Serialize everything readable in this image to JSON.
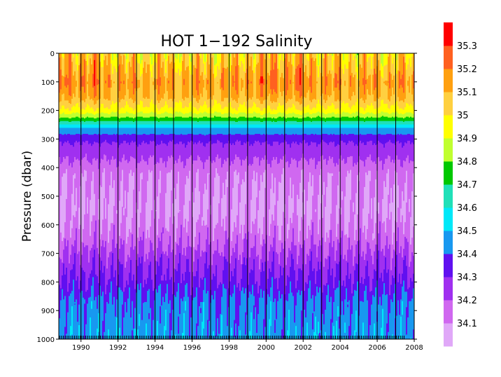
{
  "chart_data": {
    "type": "heatmap",
    "title": "HOT 1−192 Salinity",
    "ylabel": "Pressure (dbar)",
    "xlabel": "",
    "xlim": [
      1988.8,
      2008
    ],
    "ylim": [
      0,
      1000
    ],
    "y_inverted": true,
    "x_ticks": [
      "1990",
      "1992",
      "1994",
      "1996",
      "1998",
      "2000",
      "2002",
      "2004",
      "2006",
      "2008"
    ],
    "y_ticks": [
      "0",
      "100",
      "200",
      "300",
      "400",
      "500",
      "600",
      "700",
      "800",
      "900",
      "1000"
    ],
    "year_boundaries": [
      1990,
      1991,
      1992,
      1993,
      1994,
      1995,
      1996,
      1997,
      1998,
      1999,
      2000,
      2001,
      2002,
      2003,
      2004,
      2005,
      2006,
      2007
    ],
    "grid": false,
    "colorbar": {
      "placement": "right",
      "levels": [
        "34.1",
        "34.2",
        "34.3",
        "34.4",
        "34.5",
        "34.6",
        "34.7",
        "34.8",
        "34.9",
        "35",
        "35.1",
        "35.2",
        "35.3"
      ],
      "colors": [
        "#e0a8f8",
        "#d068f0",
        "#a030f0",
        "#6010f0",
        "#1898f0",
        "#00e8f8",
        "#20e0b8",
        "#00c800",
        "#c0ff30",
        "#ffff00",
        "#ffd040",
        "#ffa010",
        "#ff6020",
        "#ff0000"
      ]
    },
    "depth_profile": [
      {
        "pressure": 0,
        "salinity": 35.0
      },
      {
        "pressure": 100,
        "salinity": 35.15
      },
      {
        "pressure": 150,
        "salinity": 35.1
      },
      {
        "pressure": 200,
        "salinity": 34.95
      },
      {
        "pressure": 230,
        "salinity": 34.75
      },
      {
        "pressure": 260,
        "salinity": 34.5
      },
      {
        "pressure": 300,
        "salinity": 34.32
      },
      {
        "pressure": 360,
        "salinity": 34.22
      },
      {
        "pressure": 420,
        "salinity": 34.12
      },
      {
        "pressure": 550,
        "salinity": 34.08
      },
      {
        "pressure": 640,
        "salinity": 34.15
      },
      {
        "pressure": 720,
        "salinity": 34.25
      },
      {
        "pressure": 800,
        "salinity": 34.33
      },
      {
        "pressure": 870,
        "salinity": 34.42
      },
      {
        "pressure": 1000,
        "salinity": 34.46
      }
    ]
  }
}
